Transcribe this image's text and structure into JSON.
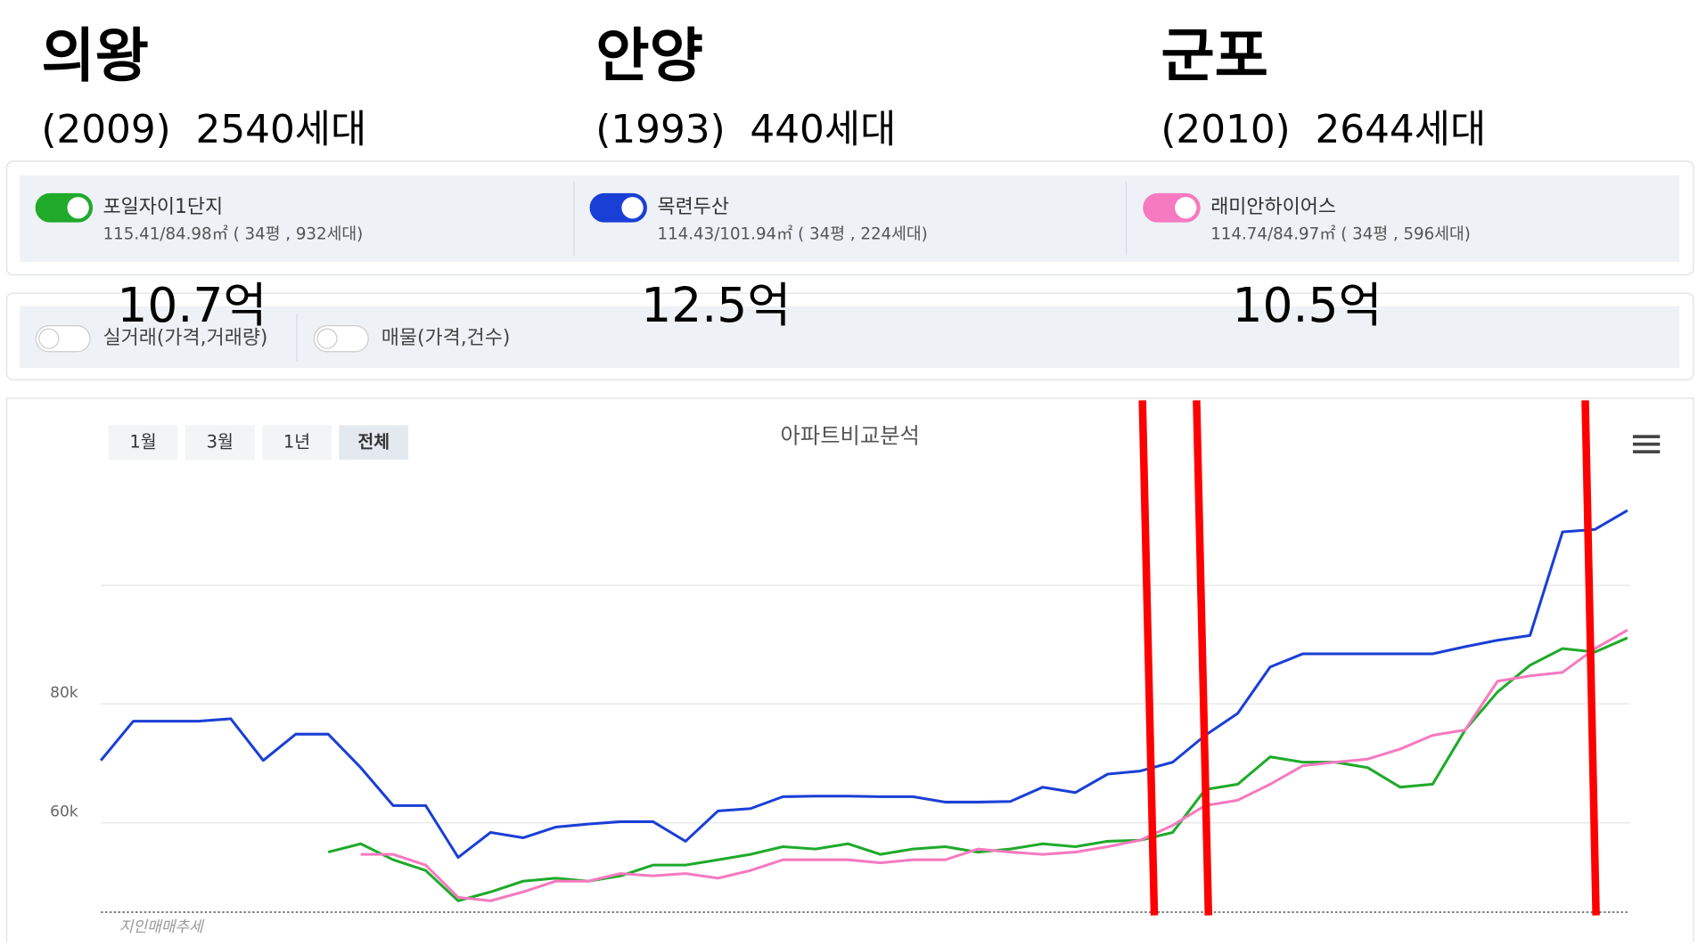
{
  "regions": [
    {
      "name": "의왕",
      "info": "(2009)  2540세대"
    },
    {
      "name": "안양",
      "info": "(1993)  440세대"
    },
    {
      "name": "군포",
      "info": "(2010)  2644세대"
    }
  ],
  "complexes": [
    {
      "detail": "115.41/84.98㎡ ( 34평 , 932세대)",
      "on": true,
      "price": "10.7억"
    },
    {
      "detail": "114.43/101.94㎡ ( 34평 , 224세대)",
      "on": true,
      "price": "12.5억"
    },
    {
      "detail": "114.74/84.97㎡ ( 34평 , 596세대)",
      "on": true,
      "price": "10.5억"
    }
  ],
  "filters": [
    {
      "label": "실거래(가격,거래량)",
      "on": false
    },
    {
      "label": "매물(가격,건수)",
      "on": false
    }
  ],
  "range_buttons": {
    "items": [
      "1월",
      "3월",
      "1년",
      "전체"
    ],
    "selected": 3
  },
  "chart_data": {
    "type": "line",
    "title": "아파트비교분석",
    "watermark": "지인매매추세",
    "ylim": [
      45000,
      115000
    ],
    "yticks": [
      {
        "value": 60000,
        "label": "60k"
      },
      {
        "value": 80000,
        "label": "80k"
      }
    ],
    "grid": true,
    "series": [
      {
        "name": "포일자이1단지",
        "color": "#1faa2a",
        "values": [
          null,
          null,
          null,
          null,
          null,
          null,
          null,
          55100,
          56500,
          53800,
          52000,
          46900,
          48400,
          50200,
          50700,
          50200,
          51100,
          52900,
          52900,
          53800,
          54700,
          56000,
          55600,
          56500,
          54700,
          55600,
          56000,
          55100,
          55600,
          56500,
          56000,
          56900,
          57100,
          58400,
          65600,
          66500,
          71100,
          70200,
          70200,
          69300,
          66000,
          66500,
          75600,
          82000,
          86500,
          89300,
          88700,
          91100
        ]
      },
      {
        "name": "목련두산",
        "color": "#1a3fd6",
        "values": [
          70500,
          77100,
          77100,
          77100,
          77500,
          70500,
          74900,
          74900,
          69300,
          62900,
          62900,
          54200,
          58400,
          57500,
          59300,
          59800,
          60200,
          60200,
          56900,
          62000,
          62400,
          64400,
          64500,
          64500,
          64400,
          64400,
          63500,
          63500,
          63600,
          66000,
          65100,
          68200,
          68700,
          70200,
          74700,
          78400,
          86200,
          88400,
          88400,
          88400,
          88400,
          88400,
          89600,
          90700,
          91500,
          108900,
          109300,
          112500
        ]
      },
      {
        "name": "래미안하이어스",
        "color": "#f57ac0",
        "values": [
          null,
          null,
          null,
          null,
          null,
          null,
          null,
          null,
          54700,
          54700,
          52900,
          47500,
          46900,
          48400,
          50200,
          50200,
          51500,
          51100,
          51500,
          50700,
          52000,
          53800,
          53800,
          53800,
          53300,
          53800,
          53800,
          55600,
          55100,
          54700,
          55100,
          56000,
          57100,
          59600,
          62900,
          63800,
          66500,
          69600,
          70200,
          70700,
          72400,
          74700,
          75600,
          83800,
          84700,
          85300,
          89300,
          92400
        ]
      }
    ]
  }
}
